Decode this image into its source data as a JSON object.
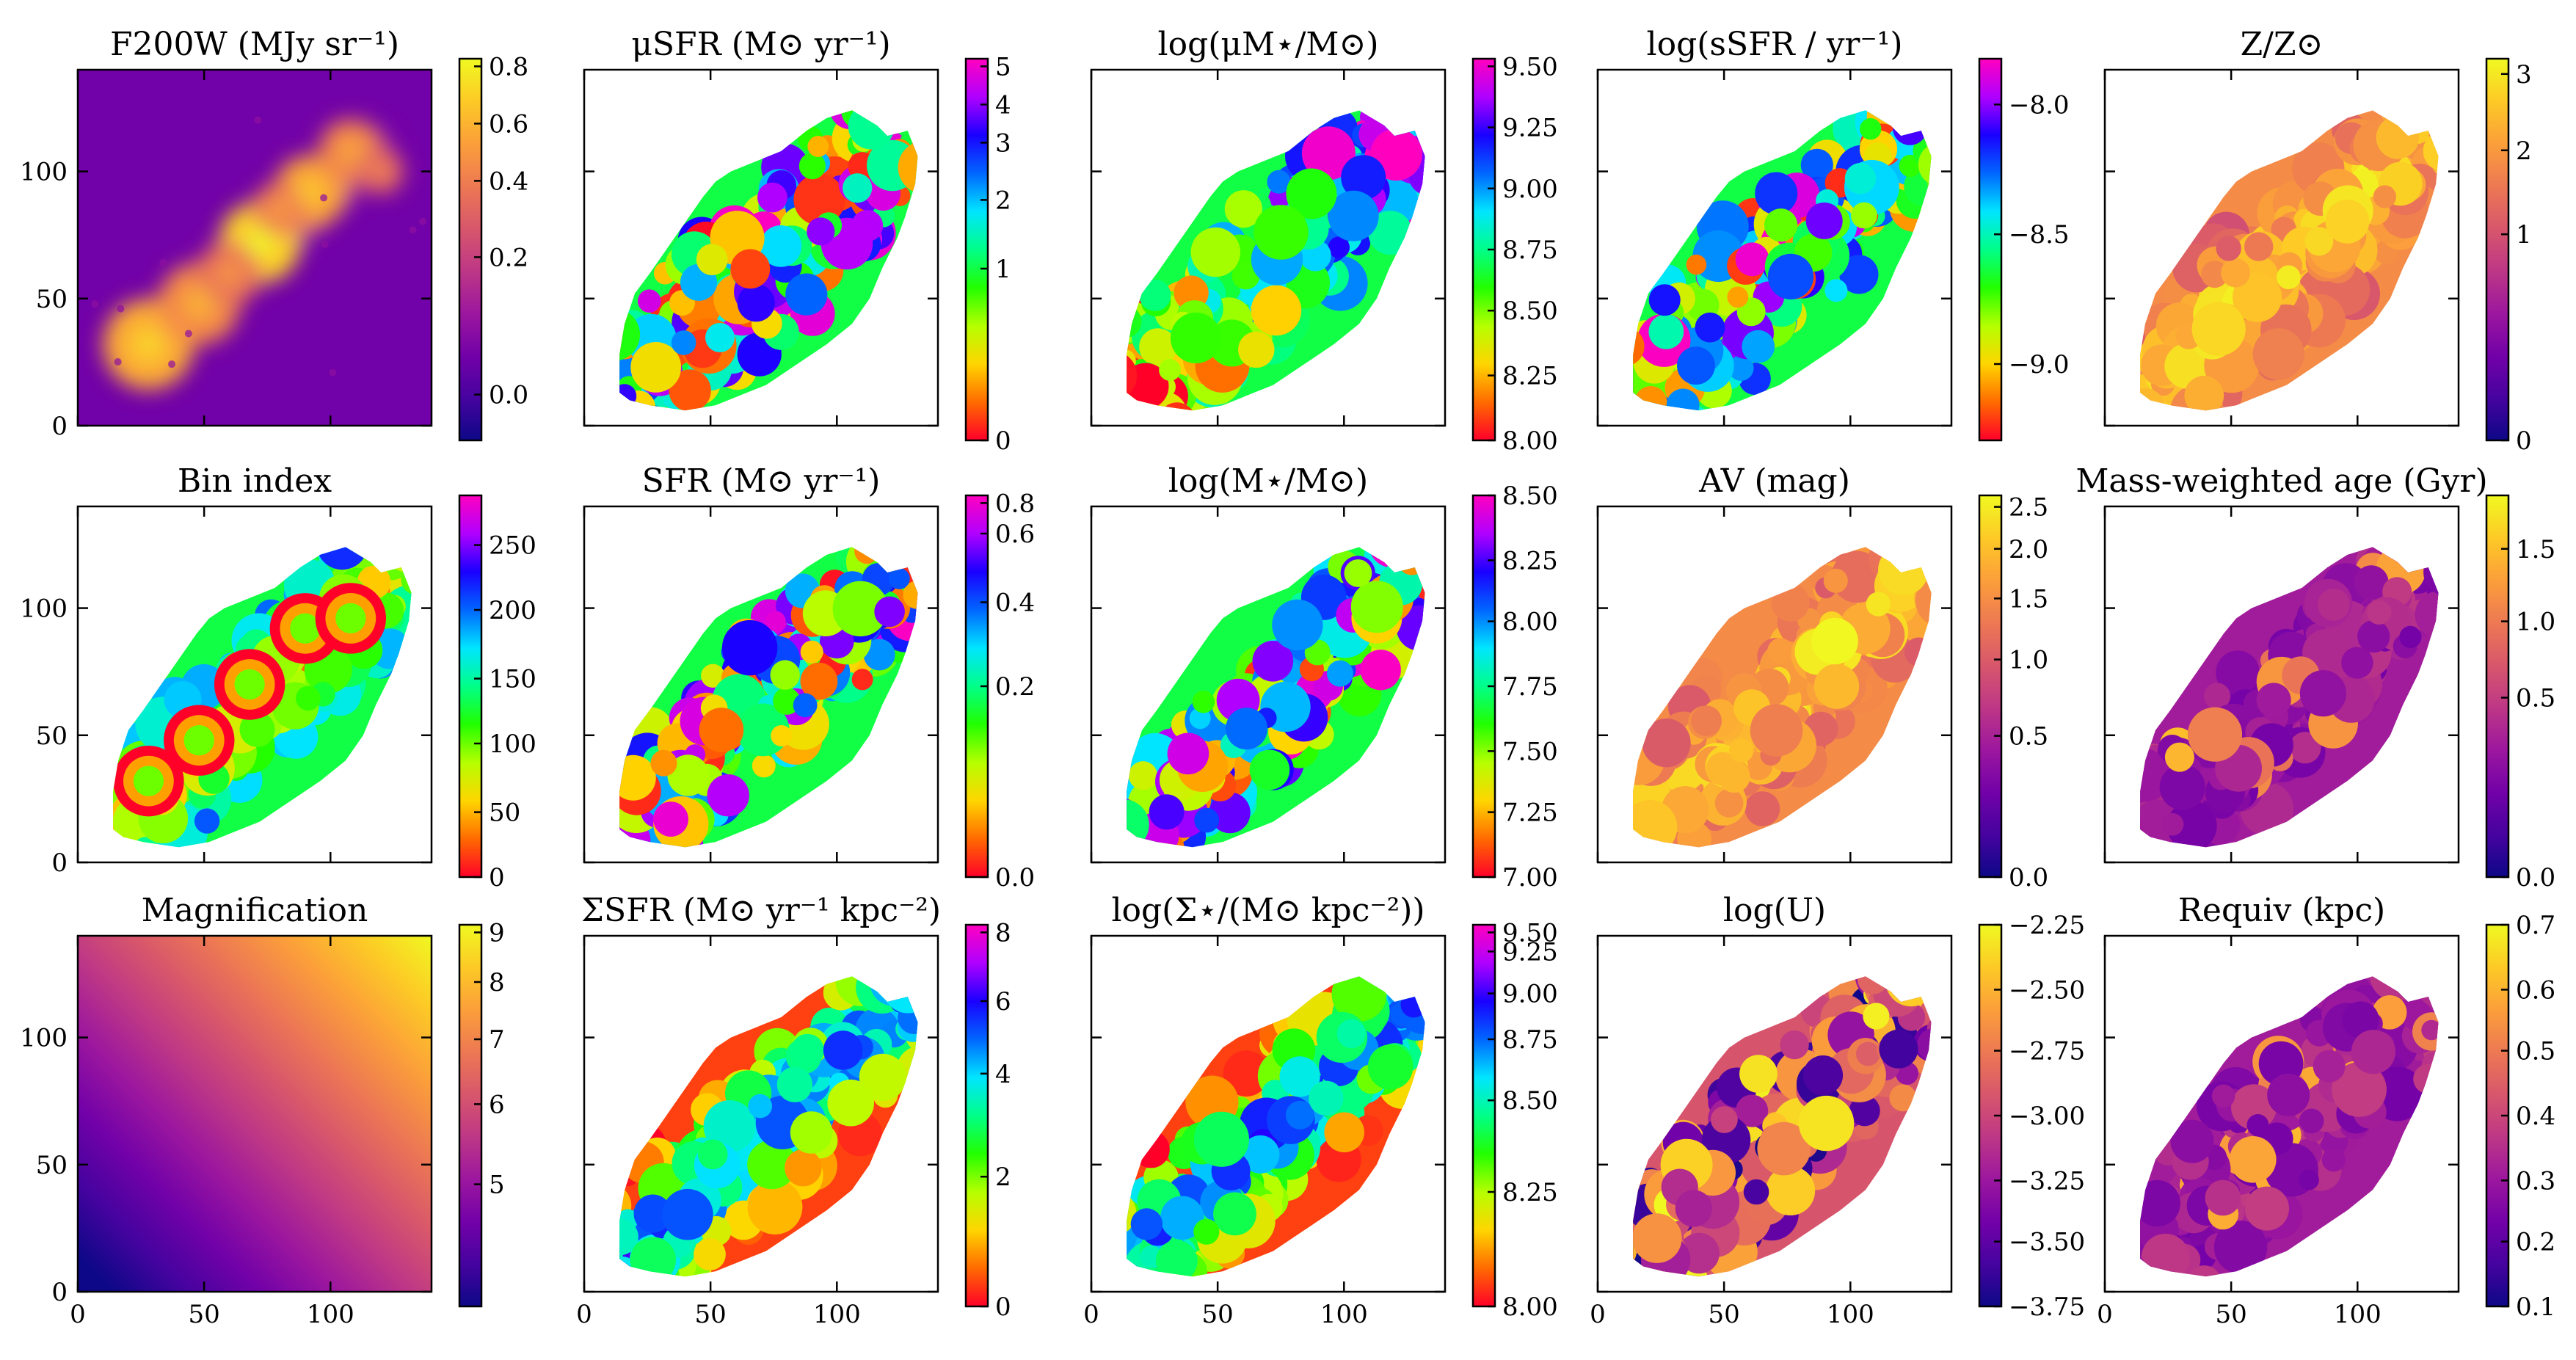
{
  "chart_data": [
    {
      "type": "heatmap",
      "title": "F200W (MJy sr⁻¹)",
      "colormap": "plasma",
      "cbar_ticks": [
        "0.8",
        "0.6",
        "0.4",
        "0.2",
        "0.0"
      ],
      "cbar_pos": [
        0.98,
        0.83,
        0.68,
        0.48,
        0.12
      ],
      "xlim": [
        0,
        140
      ],
      "ylim": [
        0,
        140
      ],
      "show_xticks": false,
      "show_yticks": true,
      "xticks": [
        0,
        50,
        100
      ],
      "yticks": [
        0,
        50,
        100
      ],
      "blobs": [
        [
          72,
          72,
          9,
          1.0
        ],
        [
          28,
          32,
          10,
          0.8
        ],
        [
          48,
          48,
          9,
          0.6
        ],
        [
          92,
          92,
          8,
          0.75
        ],
        [
          108,
          108,
          7,
          0.55
        ],
        [
          80,
          85,
          6,
          0.5
        ],
        [
          60,
          60,
          7,
          0.45
        ],
        [
          120,
          100,
          5,
          0.35
        ]
      ]
    },
    {
      "type": "heatmap",
      "title": "μSFR (M⊙ yr⁻¹)",
      "colormap": "gist_rainbow",
      "cbar_ticks": [
        "5",
        "4",
        "3",
        "2",
        "1",
        "0"
      ],
      "cbar_pos": [
        0.98,
        0.88,
        0.78,
        0.63,
        0.45,
        0.0
      ],
      "xlim": [
        0,
        140
      ],
      "ylim": [
        0,
        140
      ],
      "show_xticks": false,
      "show_yticks": false,
      "pattern": "random"
    },
    {
      "type": "heatmap",
      "title": "log(μM⋆/M⊙)",
      "colormap": "gist_rainbow",
      "cbar_ticks": [
        "9.50",
        "9.25",
        "9.00",
        "8.75",
        "8.50",
        "8.25",
        "8.00"
      ],
      "cbar_pos": [
        0.98,
        0.82,
        0.66,
        0.5,
        0.34,
        0.17,
        0.0
      ],
      "xlim": [
        0,
        140
      ],
      "ylim": [
        0,
        140
      ],
      "show_xticks": false,
      "show_yticks": false,
      "pattern": "gradientlow"
    },
    {
      "type": "heatmap",
      "title": "log(sSFR / yr⁻¹)",
      "colormap": "gist_rainbow",
      "cbar_ticks": [
        "−8.0",
        "−8.5",
        "−9.0"
      ],
      "cbar_pos": [
        0.88,
        0.54,
        0.2
      ],
      "xlim": [
        0,
        140
      ],
      "ylim": [
        0,
        140
      ],
      "show_xticks": false,
      "show_yticks": false,
      "pattern": "random"
    },
    {
      "type": "heatmap",
      "title": "Z/Z⊙",
      "colormap": "plasma",
      "cbar_ticks": [
        "3",
        "2",
        "1",
        "0"
      ],
      "cbar_pos": [
        0.96,
        0.76,
        0.54,
        0.0
      ],
      "xlim": [
        0,
        140
      ],
      "ylim": [
        0,
        140
      ],
      "show_xticks": false,
      "show_yticks": false,
      "pattern": "smoothhigh"
    },
    {
      "type": "heatmap",
      "title": "Bin index",
      "colormap": "gist_rainbow",
      "cbar_ticks": [
        "250",
        "200",
        "150",
        "100",
        "50",
        "0"
      ],
      "cbar_pos": [
        0.87,
        0.7,
        0.52,
        0.35,
        0.17,
        0.0
      ],
      "xlim": [
        0,
        140
      ],
      "ylim": [
        0,
        140
      ],
      "show_xticks": false,
      "show_yticks": true,
      "xticks": [
        0,
        50,
        100
      ],
      "yticks": [
        0,
        50,
        100
      ],
      "pattern": "binindex"
    },
    {
      "type": "heatmap",
      "title": "SFR (M⊙ yr⁻¹)",
      "colormap": "gist_rainbow",
      "cbar_ticks": [
        "0.8",
        "0.6",
        "0.4",
        "0.2",
        "0.0"
      ],
      "cbar_pos": [
        0.98,
        0.9,
        0.72,
        0.5,
        0.0
      ],
      "xlim": [
        0,
        140
      ],
      "ylim": [
        0,
        140
      ],
      "show_xticks": false,
      "show_yticks": false,
      "pattern": "random"
    },
    {
      "type": "heatmap",
      "title": "log(M⋆/M⊙)",
      "colormap": "gist_rainbow",
      "cbar_ticks": [
        "8.50",
        "8.25",
        "8.00",
        "7.75",
        "7.50",
        "7.25",
        "7.00"
      ],
      "cbar_pos": [
        1.0,
        0.83,
        0.67,
        0.5,
        0.33,
        0.17,
        0.0
      ],
      "xlim": [
        0,
        140
      ],
      "ylim": [
        0,
        140
      ],
      "show_xticks": false,
      "show_yticks": false,
      "pattern": "random"
    },
    {
      "type": "heatmap",
      "title": "AV (mag)",
      "colormap": "plasma",
      "cbar_ticks": [
        "2.5",
        "2.0",
        "1.5",
        "1.0",
        "0.5",
        "0.0"
      ],
      "cbar_pos": [
        0.97,
        0.86,
        0.73,
        0.57,
        0.37,
        0.0
      ],
      "xlim": [
        0,
        140
      ],
      "ylim": [
        0,
        140
      ],
      "show_xticks": false,
      "show_yticks": false,
      "pattern": "smoothhigh"
    },
    {
      "type": "heatmap",
      "title": "Mass-weighted age (Gyr)",
      "colormap": "plasma",
      "cbar_ticks": [
        "1.5",
        "1.0",
        "0.5",
        "0.0"
      ],
      "cbar_pos": [
        0.86,
        0.67,
        0.47,
        0.0
      ],
      "xlim": [
        0,
        140
      ],
      "ylim": [
        0,
        140
      ],
      "show_xticks": false,
      "show_yticks": false,
      "pattern": "lowdark"
    },
    {
      "type": "heatmap",
      "title": "Magnification",
      "colormap": "plasma",
      "cbar_ticks": [
        "9",
        "8",
        "7",
        "6",
        "5"
      ],
      "cbar_pos": [
        0.98,
        0.85,
        0.7,
        0.53,
        0.32
      ],
      "xlim": [
        0,
        140
      ],
      "ylim": [
        0,
        140
      ],
      "show_xticks": true,
      "show_yticks": true,
      "xticks": [
        0,
        50,
        100
      ],
      "yticks": [
        0,
        50,
        100
      ],
      "pattern": "magnification"
    },
    {
      "type": "heatmap",
      "title": "ΣSFR (M⊙ yr⁻¹ kpc⁻²)",
      "colormap": "gist_rainbow",
      "cbar_ticks": [
        "8",
        "6",
        "4",
        "2",
        "0"
      ],
      "cbar_pos": [
        0.98,
        0.8,
        0.61,
        0.34,
        0.0
      ],
      "xlim": [
        0,
        140
      ],
      "ylim": [
        0,
        140
      ],
      "show_xticks": true,
      "show_yticks": false,
      "xticks": [
        0,
        50,
        100
      ],
      "yticks": [
        0,
        50,
        100
      ],
      "pattern": "central"
    },
    {
      "type": "heatmap",
      "title": "log(Σ⋆/(M⊙ kpc⁻²))",
      "colormap": "gist_rainbow",
      "cbar_ticks": [
        "9.50",
        "9.25",
        "9.00",
        "8.75",
        "8.50",
        "8.25",
        "8.00"
      ],
      "cbar_pos": [
        0.98,
        0.93,
        0.82,
        0.7,
        0.54,
        0.3,
        0.0
      ],
      "xlim": [
        0,
        140
      ],
      "ylim": [
        0,
        140
      ],
      "show_xticks": true,
      "show_yticks": false,
      "xticks": [
        0,
        50,
        100
      ],
      "yticks": [
        0,
        50,
        100
      ],
      "pattern": "central"
    },
    {
      "type": "heatmap",
      "title": "log(U)",
      "colormap": "plasma",
      "cbar_ticks": [
        "−2.25",
        "−2.50",
        "−2.75",
        "−3.00",
        "−3.25",
        "−3.50",
        "−3.75"
      ],
      "cbar_pos": [
        1.0,
        0.83,
        0.67,
        0.5,
        0.33,
        0.17,
        0.0
      ],
      "xlim": [
        0,
        140
      ],
      "ylim": [
        0,
        140
      ],
      "show_xticks": true,
      "show_yticks": false,
      "xticks": [
        0,
        50,
        100
      ],
      "yticks": [
        0,
        50,
        100
      ],
      "pattern": "random"
    },
    {
      "type": "heatmap",
      "title": "Requiv (kpc)",
      "colormap": "plasma",
      "cbar_ticks": [
        "0.7",
        "0.6",
        "0.5",
        "0.4",
        "0.3",
        "0.2",
        "0.1"
      ],
      "cbar_pos": [
        1.0,
        0.83,
        0.67,
        0.5,
        0.33,
        0.17,
        0.0
      ],
      "xlim": [
        0,
        140
      ],
      "ylim": [
        0,
        140
      ],
      "show_xticks": true,
      "show_yticks": false,
      "xticks": [
        0,
        50,
        100
      ],
      "yticks": [
        0,
        50,
        100
      ],
      "pattern": "lowdark"
    }
  ],
  "shared": {
    "galaxy_outline": [
      [
        14,
        13
      ],
      [
        18,
        10
      ],
      [
        26,
        8
      ],
      [
        40,
        6
      ],
      [
        52,
        8
      ],
      [
        62,
        12
      ],
      [
        72,
        16
      ],
      [
        84,
        24
      ],
      [
        96,
        32
      ],
      [
        106,
        40
      ],
      [
        113,
        50
      ],
      [
        118,
        62
      ],
      [
        124,
        74
      ],
      [
        127,
        82
      ],
      [
        131,
        95
      ],
      [
        132,
        106
      ],
      [
        128,
        116
      ],
      [
        120,
        114
      ],
      [
        116,
        118
      ],
      [
        106,
        124
      ],
      [
        96,
        121
      ],
      [
        88,
        116
      ],
      [
        78,
        108
      ],
      [
        68,
        104
      ],
      [
        58,
        100
      ],
      [
        52,
        96
      ],
      [
        47,
        90
      ],
      [
        40,
        80
      ],
      [
        33,
        70
      ],
      [
        26,
        60
      ],
      [
        20,
        52
      ],
      [
        16,
        40
      ],
      [
        14,
        28
      ]
    ]
  }
}
